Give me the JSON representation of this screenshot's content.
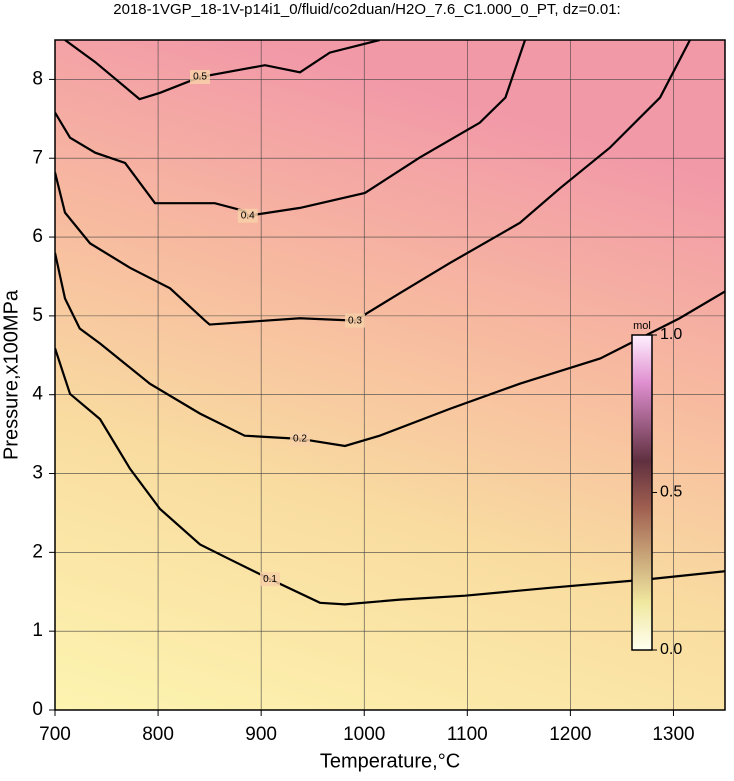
{
  "chart_data": {
    "type": "contour",
    "title": "2018-1VGP_18-1V-p14i1_0/fluid/co2duan/H2O_7.6_C1.000_0_PT, dz=0.01:",
    "xlabel": "Temperature,°C",
    "ylabel": "Pressure,x100MPa",
    "xlim": [
      700,
      1350
    ],
    "ylim": [
      0,
      8.5
    ],
    "xticks": [
      700,
      800,
      900,
      1000,
      1100,
      1200,
      1300
    ],
    "yticks": [
      0,
      1,
      2,
      3,
      4,
      5,
      6,
      7,
      8
    ],
    "grid": true,
    "line_color": "#000000",
    "contours": [
      {
        "level": 0.1,
        "x": [
          700,
          714.6,
          743.7,
          772.8,
          801.9,
          840.7,
          869.8,
          908.6,
          957.1,
          981.3,
          1034.7,
          1097.7,
          1180,
          1277,
          1350
        ],
        "y": [
          4.59,
          4.01,
          3.69,
          3.06,
          2.55,
          2.1,
          1.91,
          1.66,
          1.36,
          1.34,
          1.4,
          1.45,
          1.55,
          1.66,
          1.76
        ]
      },
      {
        "level": 0.2,
        "x": [
          700,
          709.7,
          724,
          743.7,
          792,
          840.7,
          884,
          937.7,
          981.3,
          1015,
          1083,
          1151,
          1229,
          1306,
          1350
        ],
        "y": [
          5.8,
          5.22,
          4.84,
          4.65,
          4.14,
          3.76,
          3.48,
          3.44,
          3.35,
          3.48,
          3.82,
          4.14,
          4.46,
          4.97,
          5.31
        ]
      },
      {
        "level": 0.3,
        "x": [
          700,
          709.7,
          734,
          772.8,
          811.6,
          845.5,
          850,
          937.7,
          991,
          1034.7,
          1083,
          1151,
          1190,
          1238,
          1287,
          1316
        ],
        "y": [
          6.82,
          6.31,
          5.92,
          5.61,
          5.35,
          4.94,
          4.89,
          4.97,
          4.94,
          5.29,
          5.67,
          6.18,
          6.62,
          7.13,
          7.77,
          8.5
        ]
      },
      {
        "level": 0.4,
        "x": [
          700,
          714.6,
          739,
          768,
          797,
          855,
          884,
          887,
          937.7,
          1000.7,
          1054,
          1112,
          1137,
          1156
        ],
        "y": [
          7.58,
          7.26,
          7.07,
          6.94,
          6.43,
          6.43,
          6.33,
          6.27,
          6.37,
          6.56,
          7.01,
          7.45,
          7.77,
          8.5
        ]
      },
      {
        "level": 0.5,
        "x": [
          709.7,
          739,
          782,
          801.9,
          840.7,
          903.7,
          937.7,
          966.6,
          1015
        ],
        "y": [
          8.5,
          8.22,
          7.75,
          7.83,
          8.03,
          8.18,
          8.09,
          8.34,
          8.5
        ]
      }
    ],
    "colorbar": {
      "unit": "mol",
      "zlim": [
        0,
        1
      ],
      "ticks": [
        {
          "value": 0,
          "label": "0.0"
        },
        {
          "value": 0.5,
          "label": "0.5"
        },
        {
          "value": 1,
          "label": "1.0"
        }
      ]
    }
  }
}
